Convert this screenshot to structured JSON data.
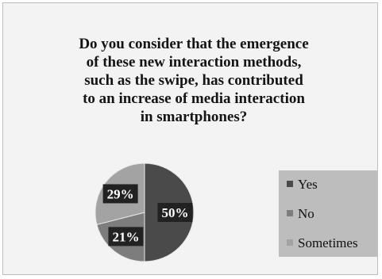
{
  "chart_data": {
    "type": "pie",
    "title": "Do you consider that the emergence of these new interaction methods, such as the swipe, has contributed to an increase of media interaction in smartphones?",
    "title_lines": [
      "Do you consider that the emergence",
      "of these new interaction methods,",
      "such as the swipe, has contributed",
      "to an increase of media interaction",
      "in smartphones?"
    ],
    "categories": [
      "Yes",
      "No",
      "Sometimes"
    ],
    "values": [
      50,
      21,
      29
    ],
    "value_labels": [
      "50%",
      "21%",
      "29%"
    ],
    "colors": [
      "#4a4a4a",
      "#7d7d7d",
      "#a3a3a3"
    ],
    "legend": {
      "position": "right"
    }
  }
}
